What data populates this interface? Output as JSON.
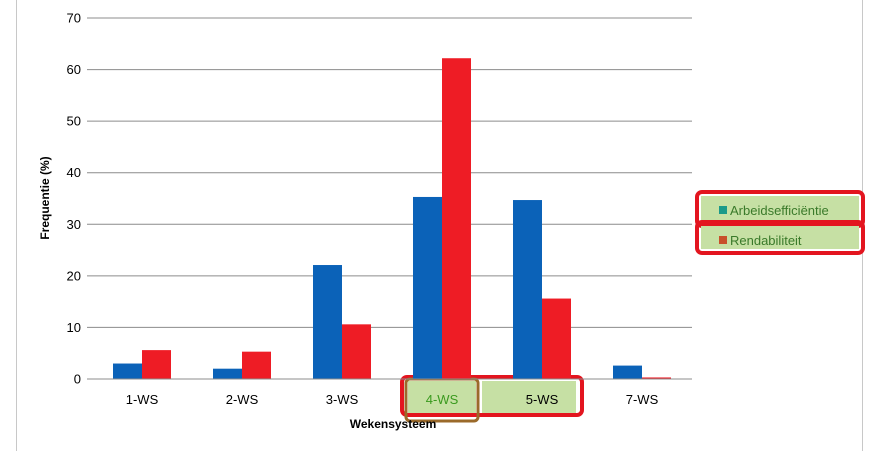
{
  "chart_data": {
    "type": "bar",
    "title": "",
    "xlabel": "Wekensysteem",
    "ylabel": "Frequentie (%)",
    "ylim": [
      0,
      70
    ],
    "yticks": [
      0,
      10,
      20,
      30,
      40,
      50,
      60,
      70
    ],
    "grid": true,
    "legend": "right",
    "categories": [
      "1-WS",
      "2-WS",
      "3-WS",
      "4-WS",
      "5-WS",
      "7-WS"
    ],
    "series": [
      {
        "name": "Arbeidsefficiëntie",
        "color": "#0b62b8",
        "legend_swatch": "#1a9a8a",
        "values": [
          3.0,
          2.0,
          22.1,
          35.3,
          34.7,
          2.6
        ]
      },
      {
        "name": "Rendabiliteit",
        "color": "#ee1c25",
        "legend_swatch": "#c8502a",
        "values": [
          5.6,
          5.3,
          10.6,
          62.2,
          15.6,
          0.3
        ]
      }
    ],
    "highlight_colors": {
      "fill": "#c6e0a4",
      "border": "#e3151f",
      "text_green": "#3a9a1e"
    },
    "highlighted_categories": [
      "4-WS",
      "5-WS"
    ]
  }
}
